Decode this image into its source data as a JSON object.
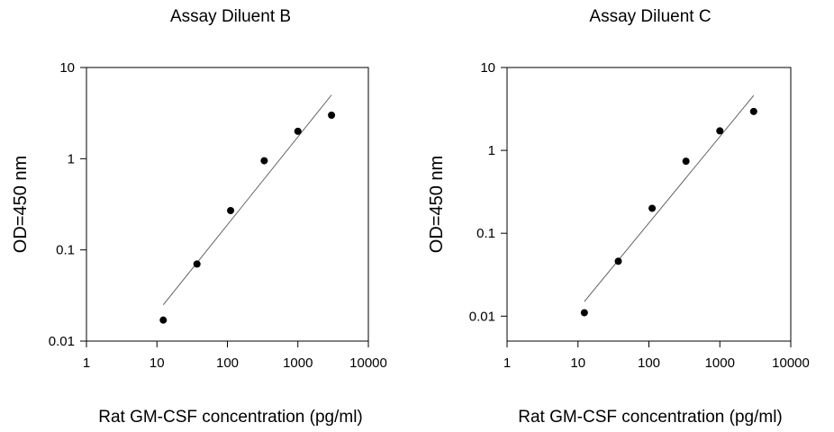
{
  "chart_data": [
    {
      "type": "scatter",
      "title": "Assay Diluent B",
      "xlabel": "Rat GM-CSF  concentration (pg/ml)",
      "ylabel": "OD=450 nm",
      "xscale": "log",
      "yscale": "log",
      "xlim": [
        1,
        10000
      ],
      "ylim": [
        0.01,
        10
      ],
      "x_ticks": [
        "1",
        "10",
        "100",
        "1000",
        "10000"
      ],
      "y_ticks": [
        "0.01",
        "0.1",
        "1",
        "10"
      ],
      "grid": false,
      "series": [
        {
          "x": [
            12.3,
            37,
            111,
            333,
            1000,
            3000
          ],
          "y": [
            0.017,
            0.07,
            0.27,
            0.95,
            2.0,
            3.0
          ]
        }
      ],
      "fit_line": {
        "x": [
          12.3,
          3000
        ],
        "y": [
          0.025,
          5.0
        ]
      }
    },
    {
      "type": "scatter",
      "title": "Assay Diluent C",
      "xlabel": "Rat GM-CSF concentration (pg/ml)",
      "ylabel": "OD=450 nm",
      "xscale": "log",
      "yscale": "log",
      "xlim": [
        1,
        10000
      ],
      "ylim": [
        0.005,
        10
      ],
      "x_ticks": [
        "1",
        "10",
        "100",
        "1000",
        "10000"
      ],
      "y_ticks": [
        "0.01",
        "0.1",
        "1",
        "10"
      ],
      "grid": false,
      "series": [
        {
          "x": [
            12.3,
            37,
            111,
            333,
            1000,
            3000
          ],
          "y": [
            0.011,
            0.046,
            0.2,
            0.74,
            1.72,
            2.95
          ]
        }
      ],
      "fit_line": {
        "x": [
          12.3,
          3000
        ],
        "y": [
          0.015,
          4.6
        ]
      }
    }
  ]
}
